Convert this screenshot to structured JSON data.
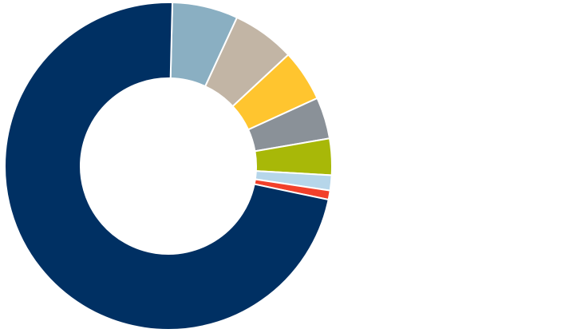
{
  "chart_data": {
    "type": "pie",
    "variant": "donut",
    "title": "",
    "legend": "none",
    "start_angle_deg": 1.4,
    "slices": [
      {
        "value": 6.5,
        "color": "#8AAFC2"
      },
      {
        "value": 6.2,
        "color": "#C2B5A5"
      },
      {
        "value": 5.1,
        "color": "#FFC52F"
      },
      {
        "value": 4.1,
        "color": "#8A9198"
      },
      {
        "value": 3.6,
        "color": "#A8B808"
      },
      {
        "value": 1.5,
        "color": "#B6D6EA"
      },
      {
        "value": 0.9,
        "color": "#F2402A"
      },
      {
        "value": 72.1,
        "color": "#003063"
      }
    ]
  }
}
